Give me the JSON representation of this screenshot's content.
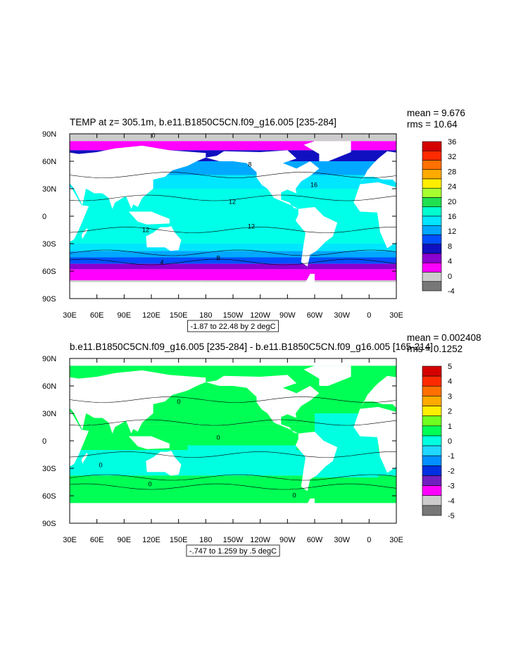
{
  "panels": [
    {
      "title": "TEMP at z= 305.1m, b.e11.B1850C5CN.f09_g16.005 [235-284]",
      "mean": "mean = 9.676",
      "rms": "rms = 10.64",
      "range_note": "-1.87 to 22.48 by 2 degC",
      "colorbar_labels": [
        "36",
        "32",
        "28",
        "24",
        "20",
        "16",
        "12",
        "8",
        "4",
        "0",
        "-4"
      ],
      "colorbar_colors": [
        "#d40000",
        "#ff2a00",
        "#ff7000",
        "#ffaa00",
        "#ffee00",
        "#a8ff30",
        "#20e050",
        "#00ffd0",
        "#00e6ff",
        "#00a8ff",
        "#0050ff",
        "#1010c0",
        "#8a00d0",
        "#ff00ff",
        "#cccccc",
        "#777777"
      ],
      "contour_labels": [
        "0",
        "8",
        "16",
        "12",
        "12",
        "12",
        "8",
        "4"
      ]
    },
    {
      "title": "b.e11.B1850C5CN.f09_g16.005 [235-284] - b.e11.B1850C5CN.f09_g16.005 [165-214]",
      "mean": "mean = 0.002408",
      "rms": "rms = 0.1252",
      "range_note": "-.747 to 1.259 by .5 degC",
      "colorbar_labels": [
        "5",
        "4",
        "3",
        "2",
        "1",
        "0",
        "-1",
        "-2",
        "-3",
        "-4",
        "-5"
      ],
      "colorbar_colors": [
        "#d40000",
        "#ff2a00",
        "#ff7000",
        "#ffaa00",
        "#ffee00",
        "#70ff20",
        "#00ff55",
        "#00ffe0",
        "#20d8ff",
        "#0090ff",
        "#0030e0",
        "#7020c0",
        "#ff00ff",
        "#cccccc",
        "#777777"
      ],
      "contour_labels": [
        "0",
        "0",
        "0",
        "0",
        "0"
      ]
    }
  ],
  "lat_labels": [
    "90N",
    "60N",
    "30N",
    "0",
    "30S",
    "60S",
    "90S"
  ],
  "lon_labels": [
    "30E",
    "60E",
    "90E",
    "120E",
    "150E",
    "180",
    "150W",
    "120W",
    "90W",
    "60W",
    "30W",
    "0",
    "30E"
  ]
}
